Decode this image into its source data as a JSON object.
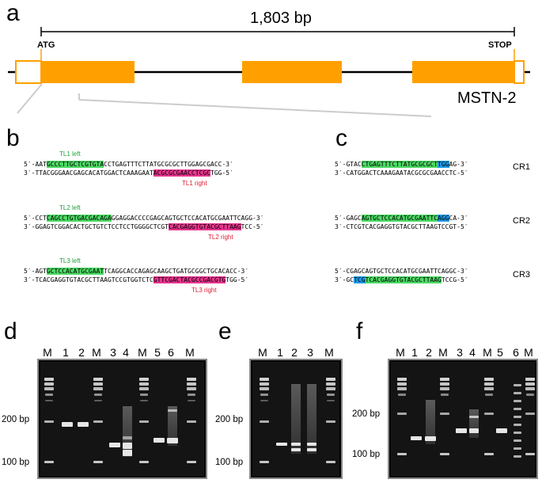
{
  "panel_a": {
    "letter": "a",
    "length_label": "1,803 bp",
    "start_label": "ATG",
    "stop_label": "STOP",
    "gene_label": "MSTN-2"
  },
  "panel_b": {
    "letter": "b",
    "groups": [
      {
        "left_label": "TL1 left",
        "right_label": "TL1 right",
        "top": {
          "pre": "5′-AAT",
          "hl": "GCCCTTGCTCGTGTA",
          "post": "CCTGAGTTTCTTATGCGCGCTTGGAGCGACC-3′"
        },
        "bot": {
          "pre": "3′-TTACGGGAACGAGCACATGGACTCAAAGAAT",
          "hl": "ACGCGCGAACCTCGC",
          "post": "TGG-5′"
        }
      },
      {
        "left_label": "TL2 left",
        "right_label": "TL2 right",
        "top": {
          "pre": "5′-CCT",
          "hl": "CAGCCTGTGACGACAGA",
          "post": "GGAGGACCCCGAGCAGTGCTCCACATGCGAATTCAGG-3′"
        },
        "bot": {
          "pre": "3′-GGAGTCGGACACTGCTGTCTCCTCCTGGGGCTCGT",
          "hl": "CACGAGGTGTACGCTTAAG",
          "post": "TCC-5′"
        }
      },
      {
        "left_label": "TL3 left",
        "right_label": "TL3 right",
        "top": {
          "pre": "5′-AGT",
          "hl": "GCTCCACATGCGAAT",
          "post": "TCAGGCACCAGAGCAAGCTGATGCGGCTGCACACC-3′"
        },
        "bot": {
          "pre": "3′-TCACGAGGTGTACGCTTAAGTCCGTGGTCTC",
          "hl": "GTTCGACTACGCCGACGTG",
          "post": "TGG-5′"
        }
      }
    ]
  },
  "panel_c": {
    "letter": "c",
    "groups": [
      {
        "label": "CR1",
        "top": {
          "pre": "5′-GTAC",
          "green": "CTGAGTTTCTTATGCGCGCT",
          "blue": "TGG",
          "post": "AG-3′"
        },
        "bot": {
          "text": "3′-CATGGACTCAAAGAATACGCGCGAACCTC-5′"
        }
      },
      {
        "label": "CR2",
        "top": {
          "pre": "5′-GAGC",
          "green": "AGTGCTCCACATGCGAATTC",
          "blue": "AGG",
          "post": "CA-3′"
        },
        "bot": {
          "text": "3′-CTCGTCACGAGGTGTACGCTTAAGTCCGT-5′"
        }
      },
      {
        "label": "CR3",
        "top": {
          "text": "5′-CGAGCAGTGCTCCACATGCGAATTCAGGC-3′"
        },
        "bot": {
          "pre": "3′-GC",
          "blue": "TCG",
          "green": "TCACGAGGTGTACGCTTAAG",
          "post": "TCCG-5′"
        }
      }
    ]
  },
  "panel_d": {
    "letter": "d",
    "lanes": [
      "M",
      "1",
      "2",
      "M",
      "3",
      "4",
      "M",
      "5",
      "6",
      "M"
    ],
    "bp_labels": [
      "200 bp",
      "100 bp"
    ]
  },
  "panel_e": {
    "letter": "e",
    "lanes": [
      "M",
      "1",
      "2",
      "3",
      "M"
    ],
    "bp_labels": [
      "200 bp",
      "100 bp"
    ]
  },
  "panel_f": {
    "letter": "f",
    "lanes": [
      "M",
      "1",
      "2",
      "M",
      "3",
      "4",
      "M",
      "5",
      "6",
      "M"
    ],
    "bp_labels": [
      "200 bp",
      "100 bp"
    ]
  },
  "colors": {
    "exon": "#ffa000",
    "green": "#4cd964",
    "pink": "#e8368f",
    "blue": "#1e9be6",
    "label_green": "#1fa33a",
    "label_red": "#e0192f"
  }
}
